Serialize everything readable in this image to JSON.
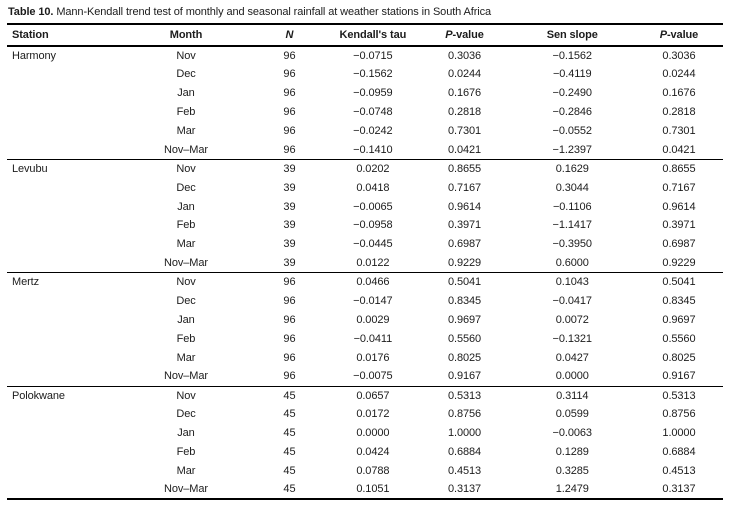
{
  "title": {
    "label": "Table 10.",
    "text": " Mann-Kendall trend test of monthly and seasonal rainfall at weather stations in South Africa"
  },
  "table": {
    "columns": [
      {
        "label": "Station",
        "style": "plain"
      },
      {
        "label": "Month",
        "style": "plain"
      },
      {
        "label": "N",
        "style": "italic"
      },
      {
        "label": "Kendall's tau",
        "style": "plain"
      },
      {
        "label": "P-value",
        "style": "italic-first"
      },
      {
        "label": "Sen slope",
        "style": "plain"
      },
      {
        "label": "P-value",
        "style": "italic-first"
      }
    ],
    "stations": [
      {
        "name": "Harmony",
        "rows": [
          {
            "month": "Nov",
            "n": "96",
            "tau": "−0.0715",
            "p1": "0.3036",
            "sen": "−0.1562",
            "p2": "0.3036"
          },
          {
            "month": "Dec",
            "n": "96",
            "tau": "−0.1562",
            "p1": "0.0244",
            "sen": "−0.4119",
            "p2": "0.0244"
          },
          {
            "month": "Jan",
            "n": "96",
            "tau": "−0.0959",
            "p1": "0.1676",
            "sen": "−0.2490",
            "p2": "0.1676"
          },
          {
            "month": "Feb",
            "n": "96",
            "tau": "−0.0748",
            "p1": "0.2818",
            "sen": "−0.2846",
            "p2": "0.2818"
          },
          {
            "month": "Mar",
            "n": "96",
            "tau": "−0.0242",
            "p1": "0.7301",
            "sen": "−0.0552",
            "p2": "0.7301"
          },
          {
            "month": "Nov–Mar",
            "n": "96",
            "tau": "−0.1410",
            "p1": "0.0421",
            "sen": "−1.2397",
            "p2": "0.0421"
          }
        ]
      },
      {
        "name": "Levubu",
        "rows": [
          {
            "month": "Nov",
            "n": "39",
            "tau": "0.0202",
            "p1": "0.8655",
            "sen": "0.1629",
            "p2": "0.8655"
          },
          {
            "month": "Dec",
            "n": "39",
            "tau": "0.0418",
            "p1": "0.7167",
            "sen": "0.3044",
            "p2": "0.7167"
          },
          {
            "month": "Jan",
            "n": "39",
            "tau": "−0.0065",
            "p1": "0.9614",
            "sen": "−0.1106",
            "p2": "0.9614"
          },
          {
            "month": "Feb",
            "n": "39",
            "tau": "−0.0958",
            "p1": "0.3971",
            "sen": "−1.1417",
            "p2": "0.3971"
          },
          {
            "month": "Mar",
            "n": "39",
            "tau": "−0.0445",
            "p1": "0.6987",
            "sen": "−0.3950",
            "p2": "0.6987"
          },
          {
            "month": "Nov–Mar",
            "n": "39",
            "tau": "0.0122",
            "p1": "0.9229",
            "sen": "0.6000",
            "p2": "0.9229"
          }
        ]
      },
      {
        "name": "Mertz",
        "rows": [
          {
            "month": "Nov",
            "n": "96",
            "tau": "0.0466",
            "p1": "0.5041",
            "sen": "0.1043",
            "p2": "0.5041"
          },
          {
            "month": "Dec",
            "n": "96",
            "tau": "−0.0147",
            "p1": "0.8345",
            "sen": "−0.0417",
            "p2": "0.8345"
          },
          {
            "month": "Jan",
            "n": "96",
            "tau": "0.0029",
            "p1": "0.9697",
            "sen": "0.0072",
            "p2": "0.9697"
          },
          {
            "month": "Feb",
            "n": "96",
            "tau": "−0.0411",
            "p1": "0.5560",
            "sen": "−0.1321",
            "p2": "0.5560"
          },
          {
            "month": "Mar",
            "n": "96",
            "tau": "0.0176",
            "p1": "0.8025",
            "sen": "0.0427",
            "p2": "0.8025"
          },
          {
            "month": "Nov–Mar",
            "n": "96",
            "tau": "−0.0075",
            "p1": "0.9167",
            "sen": "0.0000",
            "p2": "0.9167"
          }
        ]
      },
      {
        "name": "Polokwane",
        "rows": [
          {
            "month": "Nov",
            "n": "45",
            "tau": "0.0657",
            "p1": "0.5313",
            "sen": "0.3114",
            "p2": "0.5313"
          },
          {
            "month": "Dec",
            "n": "45",
            "tau": "0.0172",
            "p1": "0.8756",
            "sen": "0.0599",
            "p2": "0.8756"
          },
          {
            "month": "Jan",
            "n": "45",
            "tau": "0.0000",
            "p1": "1.0000",
            "sen": "−0.0063",
            "p2": "1.0000"
          },
          {
            "month": "Feb",
            "n": "45",
            "tau": "0.0424",
            "p1": "0.6884",
            "sen": "0.1289",
            "p2": "0.6884"
          },
          {
            "month": "Mar",
            "n": "45",
            "tau": "0.0788",
            "p1": "0.4513",
            "sen": "0.3285",
            "p2": "0.4513"
          },
          {
            "month": "Nov–Mar",
            "n": "45",
            "tau": "0.1051",
            "p1": "0.3137",
            "sen": "1.2479",
            "p2": "0.3137"
          }
        ]
      }
    ]
  }
}
